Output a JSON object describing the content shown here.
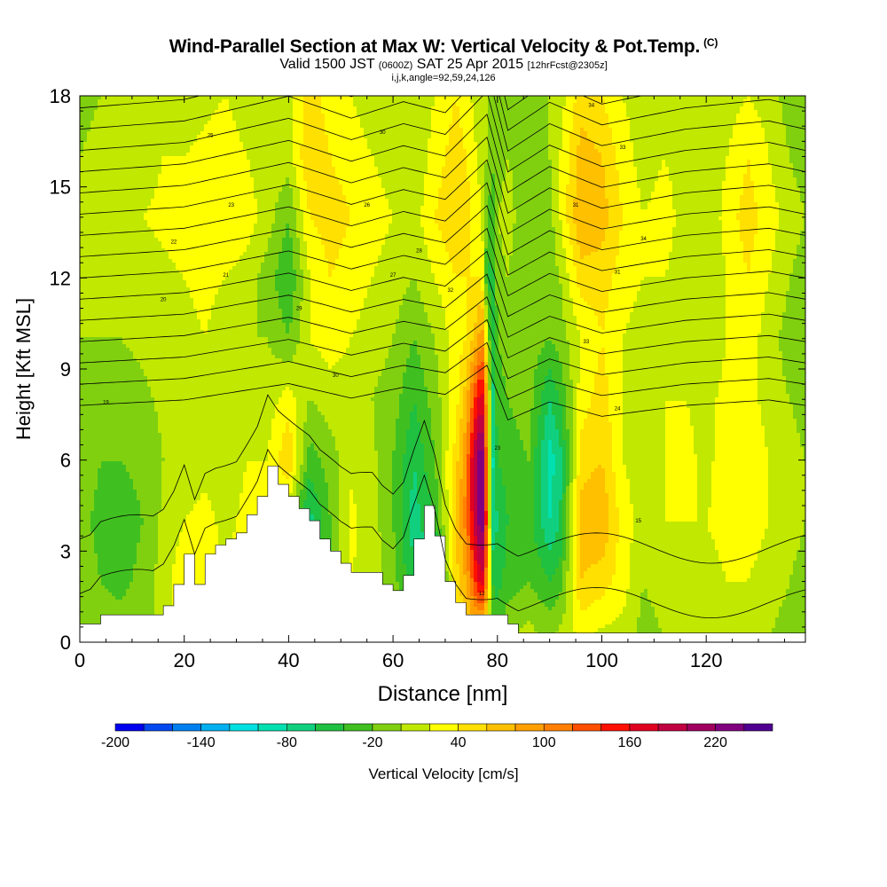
{
  "chart_data": {
    "type": "heatmap",
    "title": "Wind-Parallel Section at Max W: Vertical Velocity & Pot.Temp.",
    "title_mark": "(C)",
    "subtitle": {
      "valid": "Valid 1500 JST",
      "utc": "(0600Z)",
      "date": "SAT 25 Apr 2015",
      "forecast": "[12hrFcst@2305z]"
    },
    "params_line": "i,j,k,angle=92,59,24,126",
    "xlabel": "Distance [nm]",
    "ylabel": "Height [Kft MSL]",
    "xlim": [
      0,
      139
    ],
    "ylim": [
      0,
      18
    ],
    "x_ticks": [
      0,
      20,
      40,
      60,
      80,
      100,
      120
    ],
    "y_ticks": [
      0,
      3,
      6,
      9,
      12,
      15,
      18
    ],
    "colorbar": {
      "label": "Vertical Velocity [cm/s]",
      "ticks": [
        -200,
        -140,
        -80,
        -20,
        40,
        100,
        160,
        220
      ],
      "min": -200,
      "max": 260,
      "colors": [
        "#0000f0",
        "#0048f0",
        "#0080f0",
        "#00b0f0",
        "#00e0e0",
        "#00e0b0",
        "#10d080",
        "#20c040",
        "#40c020",
        "#80d010",
        "#c0e800",
        "#ffff00",
        "#ffe000",
        "#ffc000",
        "#ffa000",
        "#ff8000",
        "#ff5000",
        "#ff1000",
        "#e00020",
        "#c00040",
        "#a00060",
        "#800080",
        "#500090"
      ]
    },
    "wind_field": {
      "x": [
        0,
        4,
        8,
        12,
        16,
        20,
        24,
        28,
        32,
        36,
        40,
        44,
        48,
        52,
        56,
        60,
        64,
        68,
        72,
        74,
        76,
        77,
        78,
        79,
        80,
        82,
        86,
        90,
        92,
        96,
        100,
        104,
        108,
        112,
        116,
        120,
        124,
        128,
        132,
        136,
        139
      ],
      "z": [
        0,
        2,
        4,
        6,
        8,
        10,
        12,
        14,
        16,
        18
      ],
      "w_cm_s": [
        [
          -5,
          -10,
          -15,
          -10,
          -5,
          0,
          0,
          5,
          0,
          -5
        ],
        [
          -10,
          -20,
          -25,
          -20,
          -10,
          0,
          5,
          10,
          5,
          0
        ],
        [
          -10,
          -25,
          -30,
          -20,
          -10,
          0,
          5,
          10,
          5,
          0
        ],
        [
          -5,
          -15,
          -20,
          -15,
          -5,
          5,
          10,
          20,
          10,
          0
        ],
        [
          10,
          10,
          5,
          0,
          5,
          10,
          15,
          25,
          20,
          10
        ],
        [
          40,
          35,
          20,
          10,
          10,
          15,
          20,
          30,
          20,
          10
        ],
        [
          20,
          30,
          25,
          15,
          10,
          20,
          25,
          35,
          25,
          15
        ],
        [
          0,
          20,
          15,
          10,
          5,
          10,
          20,
          40,
          30,
          20
        ],
        [
          0,
          30,
          25,
          20,
          10,
          0,
          10,
          30,
          20,
          10
        ],
        [
          0,
          0,
          25,
          20,
          10,
          0,
          -10,
          10,
          10,
          0
        ],
        [
          0,
          0,
          0,
          60,
          30,
          -20,
          -40,
          -20,
          10,
          10
        ],
        [
          -60,
          -80,
          -70,
          -30,
          0,
          20,
          20,
          40,
          60,
          50
        ],
        [
          -10,
          -20,
          -20,
          -10,
          10,
          30,
          40,
          50,
          40,
          30
        ],
        [
          10,
          20,
          25,
          15,
          10,
          20,
          30,
          40,
          30,
          20
        ],
        [
          5,
          10,
          10,
          5,
          0,
          10,
          20,
          30,
          20,
          10
        ],
        [
          0,
          -10,
          -20,
          -20,
          -10,
          0,
          10,
          20,
          10,
          10
        ],
        [
          -10,
          -60,
          -70,
          -60,
          -40,
          -20,
          0,
          10,
          0,
          0
        ],
        [
          0,
          -80,
          -40,
          -20,
          -10,
          0,
          20,
          40,
          30,
          20
        ],
        [
          30,
          50,
          60,
          50,
          30,
          30,
          40,
          60,
          50,
          40
        ],
        [
          50,
          80,
          110,
          100,
          70,
          40,
          40,
          50,
          40,
          30
        ],
        [
          40,
          150,
          200,
          210,
          150,
          70,
          40,
          30,
          20,
          10
        ],
        [
          30,
          180,
          250,
          250,
          180,
          100,
          40,
          20,
          10,
          0
        ],
        [
          10,
          100,
          120,
          100,
          80,
          20,
          -40,
          -20,
          0,
          0
        ],
        [
          -10,
          -40,
          -80,
          -90,
          -70,
          -60,
          -50,
          -30,
          -20,
          -10
        ],
        [
          -20,
          -50,
          -60,
          -40,
          -30,
          -20,
          -10,
          0,
          -10,
          -10
        ],
        [
          0,
          -30,
          -40,
          -30,
          -20,
          -10,
          0,
          10,
          0,
          0
        ],
        [
          10,
          -20,
          -30,
          -20,
          -10,
          -10,
          -20,
          -20,
          -10,
          0
        ],
        [
          0,
          -40,
          -80,
          -90,
          -60,
          -20,
          -10,
          -10,
          0,
          0
        ],
        [
          10,
          -30,
          -60,
          -70,
          -40,
          -10,
          0,
          20,
          20,
          10
        ],
        [
          20,
          60,
          70,
          50,
          30,
          20,
          50,
          80,
          70,
          50
        ],
        [
          10,
          50,
          80,
          60,
          50,
          40,
          50,
          70,
          60,
          40
        ],
        [
          10,
          30,
          30,
          20,
          20,
          20,
          30,
          40,
          30,
          20
        ],
        [
          -10,
          0,
          10,
          10,
          10,
          10,
          20,
          20,
          10,
          10
        ],
        [
          0,
          10,
          20,
          20,
          20,
          20,
          20,
          30,
          20,
          10
        ],
        [
          10,
          20,
          20,
          30,
          20,
          10,
          10,
          10,
          10,
          5
        ],
        [
          0,
          10,
          20,
          10,
          10,
          0,
          0,
          0,
          0,
          0
        ],
        [
          10,
          20,
          30,
          40,
          30,
          20,
          20,
          30,
          20,
          10
        ],
        [
          10,
          20,
          30,
          40,
          30,
          30,
          40,
          50,
          40,
          20
        ],
        [
          0,
          10,
          20,
          20,
          10,
          10,
          20,
          30,
          20,
          10
        ],
        [
          -10,
          0,
          10,
          10,
          0,
          -10,
          0,
          10,
          0,
          -10
        ],
        [
          -10,
          -10,
          0,
          0,
          -10,
          -20,
          -10,
          0,
          -10,
          -10
        ]
      ]
    },
    "terrain": {
      "x": [
        0,
        2,
        4,
        6,
        8,
        10,
        12,
        14,
        16,
        18,
        20,
        22,
        24,
        26,
        28,
        30,
        32,
        34,
        36,
        38,
        40,
        42,
        44,
        46,
        48,
        50,
        52,
        54,
        56,
        58,
        60,
        62,
        64,
        66,
        68,
        70,
        72,
        74,
        76,
        78,
        80,
        82,
        84,
        86,
        139
      ],
      "height_kft": [
        0.6,
        0.6,
        0.9,
        0.9,
        0.9,
        0.9,
        0.9,
        0.9,
        1.2,
        1.9,
        2.9,
        1.9,
        2.9,
        3.2,
        3.4,
        3.6,
        4.2,
        4.8,
        5.8,
        5.2,
        4.8,
        4.4,
        4.0,
        3.4,
        3.0,
        2.6,
        2.3,
        2.3,
        2.3,
        1.9,
        1.7,
        2.2,
        3.4,
        4.5,
        3.5,
        2.0,
        1.3,
        0.9,
        0.9,
        0.9,
        0.9,
        0.6,
        0.3,
        0.3,
        0.3
      ]
    },
    "theta_contours": {
      "interval": 1,
      "spacing_kft": 0.7,
      "base_kft": 7.8,
      "crest_x": [
        0,
        20,
        40,
        52,
        62,
        70,
        78,
        82,
        90,
        100,
        116,
        132,
        139
      ],
      "crest_offset_kft": [
        0,
        0.3,
        1.2,
        0.4,
        1.0,
        0.6,
        2.2,
        -0.8,
        0.2,
        -0.6,
        0.0,
        0.3,
        0.0
      ],
      "labels": [
        {
          "text": "19",
          "x": 5,
          "z": 7.9
        },
        {
          "text": "20",
          "x": 16,
          "z": 11.3
        },
        {
          "text": "21",
          "x": 28,
          "z": 12.1
        },
        {
          "text": "22",
          "x": 18,
          "z": 13.2
        },
        {
          "text": "23",
          "x": 29,
          "z": 14.4
        },
        {
          "text": "25",
          "x": 25,
          "z": 16.7
        },
        {
          "text": "26",
          "x": 55,
          "z": 14.4
        },
        {
          "text": "27",
          "x": 60,
          "z": 12.1
        },
        {
          "text": "28",
          "x": 65,
          "z": 12.9
        },
        {
          "text": "29",
          "x": 42,
          "z": 11.0
        },
        {
          "text": "30",
          "x": 49,
          "z": 8.8
        },
        {
          "text": "30",
          "x": 58,
          "z": 16.8
        },
        {
          "text": "31",
          "x": 95,
          "z": 14.4
        },
        {
          "text": "31",
          "x": 103,
          "z": 12.2
        },
        {
          "text": "32",
          "x": 71,
          "z": 11.6
        },
        {
          "text": "33",
          "x": 97,
          "z": 9.9
        },
        {
          "text": "33",
          "x": 104,
          "z": 16.3
        },
        {
          "text": "34",
          "x": 108,
          "z": 13.3
        },
        {
          "text": "34",
          "x": 98,
          "z": 17.7
        },
        {
          "text": "24",
          "x": 103,
          "z": 7.7
        },
        {
          "text": "15",
          "x": 107,
          "z": 4.0
        },
        {
          "text": "23",
          "x": 80,
          "z": 6.4
        },
        {
          "text": "12",
          "x": 77,
          "z": 1.6
        }
      ]
    }
  }
}
